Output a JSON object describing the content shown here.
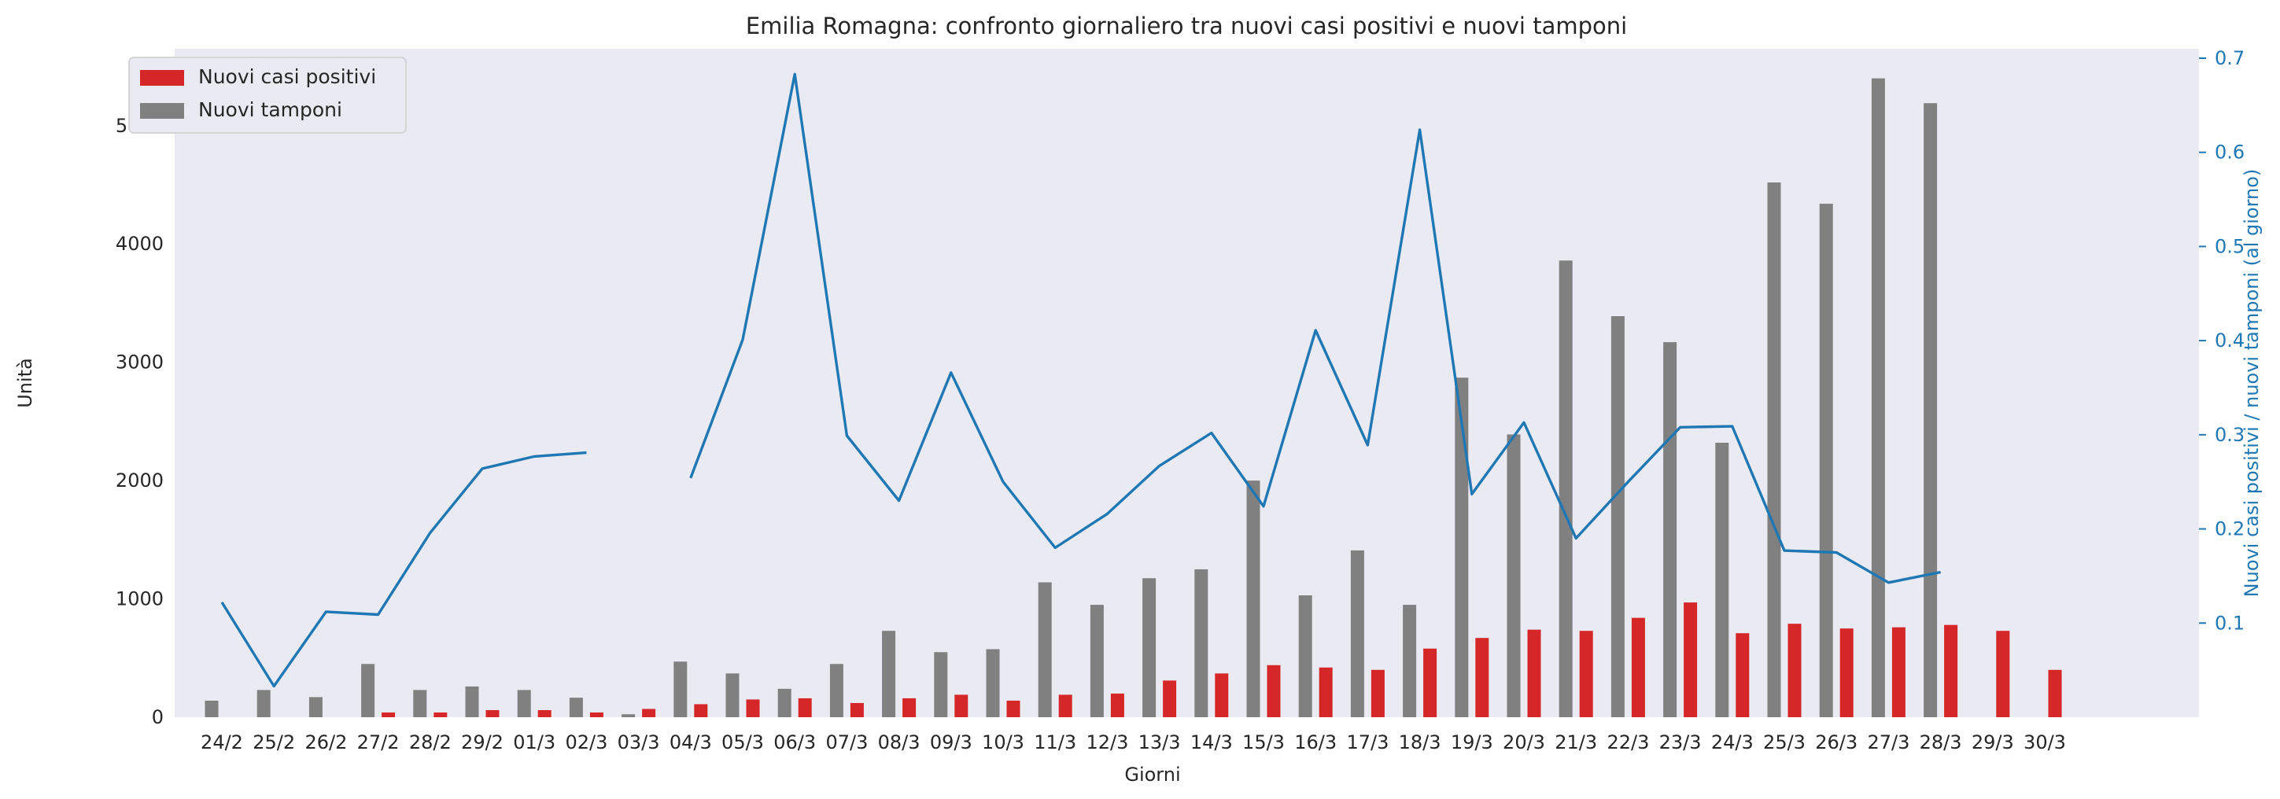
{
  "chart_data": {
    "type": "bar",
    "title": "Emilia Romagna: confronto giornaliero tra nuovi casi positivi e nuovi tamponi",
    "xlabel": "Giorni",
    "ylabel": "Unità",
    "y2label": "Nuovi casi positivi / nuovi tamponi (al giorno)",
    "ylim": [
      0,
      5650
    ],
    "y2lim": [
      0.0,
      0.71
    ],
    "yticks": [
      0,
      1000,
      2000,
      3000,
      4000,
      5000
    ],
    "y2ticks": [
      0.1,
      0.2,
      0.3,
      0.4,
      0.5,
      0.6,
      0.7
    ],
    "grid": false,
    "legend_position": "top-left",
    "categories": [
      "24/2",
      "25/2",
      "26/2",
      "27/2",
      "28/2",
      "29/2",
      "01/3",
      "02/3",
      "03/3",
      "04/3",
      "05/3",
      "06/3",
      "07/3",
      "08/3",
      "09/3",
      "10/3",
      "11/3",
      "12/3",
      "13/3",
      "14/3",
      "15/3",
      "16/3",
      "17/3",
      "18/3",
      "19/3",
      "20/3",
      "21/3",
      "22/3",
      "23/3",
      "24/3",
      "25/3",
      "26/3",
      "27/3",
      "28/3",
      "29/3",
      "30/3"
    ],
    "series": [
      {
        "name": "Nuovi tamponi",
        "color": "#808080",
        "values": [
          140,
          230,
          170,
          450,
          230,
          260,
          230,
          165,
          25,
          470,
          370,
          240,
          450,
          730,
          550,
          575,
          1140,
          950,
          1175,
          1250,
          2000,
          1030,
          1410,
          950,
          2870,
          2390,
          3860,
          3390,
          3170,
          2320,
          4520,
          4340,
          5400,
          5190,
          null,
          null
        ]
      },
      {
        "name": "Nuovi casi positivi",
        "color": "#d62728",
        "values": [
          0,
          0,
          0,
          40,
          40,
          60,
          60,
          40,
          70,
          110,
          150,
          160,
          120,
          160,
          190,
          140,
          190,
          200,
          310,
          370,
          440,
          420,
          400,
          580,
          670,
          740,
          730,
          840,
          970,
          710,
          790,
          750,
          760,
          780,
          730,
          400
        ]
      },
      {
        "name": "Nuovi casi positivi / nuovi tamponi (al giorno)",
        "type": "line",
        "axis": "right",
        "color": "#1f77b4",
        "values": [
          0.122,
          0.033,
          0.112,
          0.109,
          0.196,
          0.264,
          0.277,
          0.281,
          null,
          0.254,
          0.401,
          0.683,
          0.299,
          0.23,
          0.366,
          0.25,
          0.18,
          0.216,
          0.267,
          0.302,
          0.224,
          0.411,
          0.289,
          0.624,
          0.237,
          0.313,
          0.19,
          0.25,
          0.308,
          0.309,
          0.177,
          0.175,
          0.143,
          0.154,
          null,
          null
        ]
      }
    ]
  }
}
